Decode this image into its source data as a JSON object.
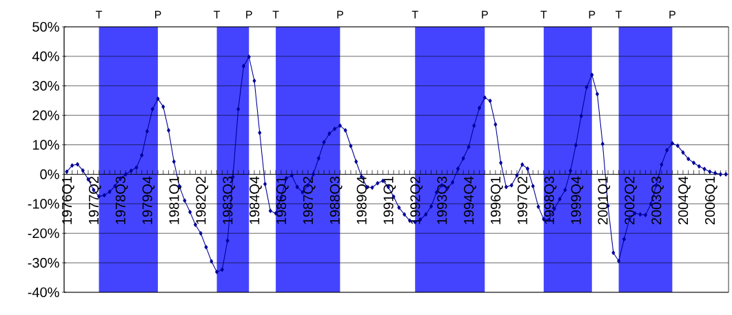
{
  "chart_data": {
    "type": "line",
    "color": "#000099",
    "marker": "diamond",
    "grid": "y",
    "x": [
      "1976-01",
      "1976-04",
      "1976-07",
      "1976-10",
      "1977-01",
      "1977-04",
      "1977-07",
      "1977-10",
      "1978-01",
      "1978-04",
      "1978-07",
      "1978-10",
      "1979-01",
      "1979-04",
      "1979-07",
      "1979-10",
      "1980-01",
      "1980-04",
      "1980-07",
      "1980-10",
      "1981-01",
      "1981-04",
      "1981-07",
      "1981-10",
      "1982-01",
      "1982-04",
      "1982-07",
      "1982-10",
      "1983-01",
      "1983-04",
      "1983-07",
      "1983-10",
      "1984-01",
      "1984-04",
      "1984-07",
      "1984-10",
      "1985-01",
      "1985-04",
      "1985-07",
      "1985-10",
      "1986-01",
      "1986-04",
      "1986-07",
      "1986-10",
      "1987-01",
      "1987-04",
      "1987-07",
      "1987-10",
      "1988-01",
      "1988-04",
      "1988-07",
      "1988-10",
      "1989-01",
      "1989-04",
      "1989-07",
      "1989-10",
      "1990-01",
      "1990-04",
      "1990-07",
      "1990-10",
      "1991-01",
      "1991-04",
      "1991-07",
      "1991-10",
      "1992-01",
      "1992-04",
      "1992-07",
      "1992-10",
      "1993-01",
      "1993-04",
      "1993-07",
      "1993-10",
      "1994-01",
      "1994-04",
      "1994-07",
      "1994-10",
      "1995-01",
      "1995-04",
      "1995-07",
      "1995-10",
      "1996-01",
      "1996-04",
      "1996-07",
      "1996-10",
      "1997-01",
      "1997-04",
      "1997-07",
      "1997-10",
      "1998-01",
      "1998-04",
      "1998-07",
      "1998-10",
      "1999-01",
      "1999-04",
      "1999-07",
      "1999-10",
      "2000-01",
      "2000-04",
      "2000-07",
      "2000-10",
      "2001-01",
      "2001-04",
      "2001-07",
      "2001-10",
      "2002-01",
      "2002-04",
      "2002-07",
      "2002-10",
      "2003-01",
      "2003-04",
      "2003-07",
      "2003-10",
      "2004-01",
      "2004-04",
      "2004-07",
      "2004-10",
      "2005-01",
      "2005-04",
      "2005-07",
      "2005-10",
      "2006-01",
      "2006-04",
      "2006-07",
      "2006-10"
    ],
    "values": [
      0.9,
      3.0,
      3.4,
      1.3,
      -1.7,
      -5.3,
      -7.5,
      -7.1,
      -5.9,
      -4.0,
      -1.4,
      0,
      1.2,
      2.3,
      6.5,
      14.6,
      22.1,
      25.6,
      22.9,
      14.9,
      4.3,
      -4.0,
      -8.9,
      -12.8,
      -17.1,
      -20.0,
      -24.7,
      -29.5,
      -33.1,
      -32.3,
      -22.5,
      -0.9,
      22.1,
      36.7,
      39.8,
      31.7,
      14.1,
      -3.3,
      -12.4,
      -13.2,
      -7.8,
      -1.3,
      -0.4,
      -4.3,
      -6.1,
      -3.7,
      0,
      5.4,
      10.9,
      13.8,
      15.4,
      16.5,
      14.9,
      9.6,
      4.3,
      -0.8,
      -4.3,
      -4.5,
      -3.0,
      -2.2,
      -4.3,
      -7.6,
      -11.3,
      -13.6,
      -15.7,
      -16.2,
      -15.3,
      -13.6,
      -10.9,
      -6.1,
      -3.7,
      -4.8,
      -2.7,
      1.9,
      5.4,
      9.3,
      16.5,
      22.5,
      26.0,
      24.9,
      16.9,
      3.9,
      -4.3,
      -3.7,
      -0.4,
      3.3,
      1.9,
      -4.0,
      -11.0,
      -15.2,
      -15.4,
      -11.7,
      -8.4,
      -5.3,
      1.2,
      9.9,
      19.8,
      29.5,
      33.7,
      27.2,
      10.3,
      -10.7,
      -26.6,
      -29.4,
      -22.0,
      -15.2,
      -13.2,
      -13.6,
      -13.8,
      -10.1,
      -3.7,
      3.3,
      8.2,
      10.5,
      9.7,
      7.4,
      5.2,
      3.9,
      2.7,
      1.8,
      0.9,
      0.4,
      0,
      0
    ],
    "xlim": [
      "1975-11-16",
      "2006-11-16"
    ],
    "xticks": [
      {
        "value": "1976-01",
        "label": "1976Q1"
      },
      {
        "value": "1976-04",
        "label": null
      },
      {
        "value": "1976-07",
        "label": null
      },
      {
        "value": "1976-10",
        "label": null
      },
      {
        "value": "1977-01",
        "label": null
      },
      {
        "value": "1977-04",
        "label": "1977Q2"
      },
      {
        "value": "1977-07",
        "label": null
      },
      {
        "value": "1977-10",
        "label": null
      },
      {
        "value": "1978-01",
        "label": null
      },
      {
        "value": "1978-04",
        "label": null
      },
      {
        "value": "1978-07",
        "label": "1978Q3"
      },
      {
        "value": "1978-10",
        "label": null
      },
      {
        "value": "1979-01",
        "label": null
      },
      {
        "value": "1979-04",
        "label": null
      },
      {
        "value": "1979-07",
        "label": null
      },
      {
        "value": "1979-10",
        "label": "1979Q4"
      },
      {
        "value": "1980-01",
        "label": null
      },
      {
        "value": "1980-04",
        "label": null
      },
      {
        "value": "1980-07",
        "label": null
      },
      {
        "value": "1980-10",
        "label": null
      },
      {
        "value": "1981-01",
        "label": "1981Q1"
      },
      {
        "value": "1981-04",
        "label": null
      },
      {
        "value": "1981-07",
        "label": null
      },
      {
        "value": "1981-10",
        "label": null
      },
      {
        "value": "1982-01",
        "label": null
      },
      {
        "value": "1982-04",
        "label": "1982Q2"
      },
      {
        "value": "1982-07",
        "label": null
      },
      {
        "value": "1982-10",
        "label": null
      },
      {
        "value": "1983-01",
        "label": null
      },
      {
        "value": "1983-04",
        "label": null
      },
      {
        "value": "1983-07",
        "label": "1983Q3"
      },
      {
        "value": "1983-10",
        "label": null
      },
      {
        "value": "1984-01",
        "label": null
      },
      {
        "value": "1984-04",
        "label": null
      },
      {
        "value": "1984-07",
        "label": null
      },
      {
        "value": "1984-10",
        "label": "1984Q4"
      },
      {
        "value": "1985-01",
        "label": null
      },
      {
        "value": "1985-04",
        "label": null
      },
      {
        "value": "1985-07",
        "label": null
      },
      {
        "value": "1985-10",
        "label": null
      },
      {
        "value": "1986-01",
        "label": "1986Q1"
      },
      {
        "value": "1986-04",
        "label": null
      },
      {
        "value": "1986-07",
        "label": null
      },
      {
        "value": "1986-10",
        "label": null
      },
      {
        "value": "1987-01",
        "label": null
      },
      {
        "value": "1987-04",
        "label": "1987Q2"
      },
      {
        "value": "1987-07",
        "label": null
      },
      {
        "value": "1987-10",
        "label": null
      },
      {
        "value": "1988-01",
        "label": null
      },
      {
        "value": "1988-04",
        "label": null
      },
      {
        "value": "1988-07",
        "label": "1988Q3"
      },
      {
        "value": "1988-10",
        "label": null
      },
      {
        "value": "1989-01",
        "label": null
      },
      {
        "value": "1989-04",
        "label": null
      },
      {
        "value": "1989-07",
        "label": null
      },
      {
        "value": "1989-10",
        "label": "1989Q4"
      },
      {
        "value": "1990-01",
        "label": null
      },
      {
        "value": "1990-04",
        "label": null
      },
      {
        "value": "1990-07",
        "label": null
      },
      {
        "value": "1990-10",
        "label": null
      },
      {
        "value": "1991-01",
        "label": "1991Q1"
      },
      {
        "value": "1991-04",
        "label": null
      },
      {
        "value": "1991-07",
        "label": null
      },
      {
        "value": "1991-10",
        "label": null
      },
      {
        "value": "1992-01",
        "label": null
      },
      {
        "value": "1992-04",
        "label": "1992Q2"
      },
      {
        "value": "1992-07",
        "label": null
      },
      {
        "value": "1992-10",
        "label": null
      },
      {
        "value": "1993-01",
        "label": null
      },
      {
        "value": "1993-04",
        "label": null
      },
      {
        "value": "1993-07",
        "label": "1993Q3"
      },
      {
        "value": "1993-10",
        "label": null
      },
      {
        "value": "1994-01",
        "label": null
      },
      {
        "value": "1994-04",
        "label": null
      },
      {
        "value": "1994-07",
        "label": null
      },
      {
        "value": "1994-10",
        "label": "1994Q4"
      },
      {
        "value": "1995-01",
        "label": null
      },
      {
        "value": "1995-04",
        "label": null
      },
      {
        "value": "1995-07",
        "label": null
      },
      {
        "value": "1995-10",
        "label": null
      },
      {
        "value": "1996-01",
        "label": "1996Q1"
      },
      {
        "value": "1996-04",
        "label": null
      },
      {
        "value": "1996-07",
        "label": null
      },
      {
        "value": "1996-10",
        "label": null
      },
      {
        "value": "1997-01",
        "label": null
      },
      {
        "value": "1997-04",
        "label": "1997Q2"
      },
      {
        "value": "1997-07",
        "label": null
      },
      {
        "value": "1997-10",
        "label": null
      },
      {
        "value": "1998-01",
        "label": null
      },
      {
        "value": "1998-04",
        "label": null
      },
      {
        "value": "1998-07",
        "label": "1998Q3"
      },
      {
        "value": "1998-10",
        "label": null
      },
      {
        "value": "1999-01",
        "label": null
      },
      {
        "value": "1999-04",
        "label": null
      },
      {
        "value": "1999-07",
        "label": null
      },
      {
        "value": "1999-10",
        "label": "1999Q4"
      },
      {
        "value": "2000-01",
        "label": null
      },
      {
        "value": "2000-04",
        "label": null
      },
      {
        "value": "2000-07",
        "label": null
      },
      {
        "value": "2000-10",
        "label": null
      },
      {
        "value": "2001-01",
        "label": "2001Q1"
      },
      {
        "value": "2001-04",
        "label": null
      },
      {
        "value": "2001-07",
        "label": null
      },
      {
        "value": "2001-10",
        "label": null
      },
      {
        "value": "2002-01",
        "label": null
      },
      {
        "value": "2002-04",
        "label": "2002Q2"
      },
      {
        "value": "2002-07",
        "label": null
      },
      {
        "value": "2002-10",
        "label": null
      },
      {
        "value": "2003-01",
        "label": null
      },
      {
        "value": "2003-04",
        "label": null
      },
      {
        "value": "2003-07",
        "label": "2003Q3"
      },
      {
        "value": "2003-10",
        "label": null
      },
      {
        "value": "2004-01",
        "label": null
      },
      {
        "value": "2004-04",
        "label": null
      },
      {
        "value": "2004-07",
        "label": null
      },
      {
        "value": "2004-10",
        "label": "2004Q4"
      },
      {
        "value": "2005-01",
        "label": null
      },
      {
        "value": "2005-04",
        "label": null
      },
      {
        "value": "2005-07",
        "label": null
      },
      {
        "value": "2005-10",
        "label": null
      },
      {
        "value": "2006-01",
        "label": "2006Q1"
      },
      {
        "value": "2006-04",
        "label": null
      },
      {
        "value": "2006-07",
        "label": null
      },
      {
        "value": "2006-10",
        "label": null
      }
    ],
    "ylim": [
      -40,
      50
    ],
    "yticks": [
      {
        "value": -40,
        "label": "-40%"
      },
      {
        "value": -30,
        "label": "-30%"
      },
      {
        "value": -20,
        "label": "-20%"
      },
      {
        "value": -10,
        "label": "-10%"
      },
      {
        "value": 0,
        "label": "0%"
      },
      {
        "value": 10,
        "label": "10%"
      },
      {
        "value": 20,
        "label": "20%"
      },
      {
        "value": 30,
        "label": "30%"
      },
      {
        "value": 40,
        "label": "40%"
      },
      {
        "value": 50,
        "label": "50%"
      }
    ],
    "bands": [
      {
        "axis": "x",
        "from": "1977-07",
        "to": "1980-04",
        "color": "#4444ff"
      },
      {
        "axis": "x",
        "from": "1983-01",
        "to": "1984-07",
        "color": "#4444ff"
      },
      {
        "axis": "x",
        "from": "1985-10",
        "to": "1988-10",
        "color": "#4444ff"
      },
      {
        "axis": "x",
        "from": "1992-04",
        "to": "1995-07",
        "color": "#4444ff"
      },
      {
        "axis": "x",
        "from": "1998-04",
        "to": "2000-07",
        "color": "#4444ff"
      },
      {
        "axis": "x",
        "from": "2001-10",
        "to": "2004-04",
        "color": "#4444ff"
      }
    ],
    "annotations": [
      "T",
      "P",
      "T",
      "P",
      "T",
      "P",
      "T",
      "P",
      "T",
      "P",
      "T",
      "P"
    ]
  }
}
